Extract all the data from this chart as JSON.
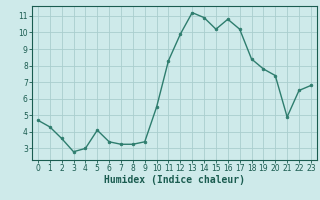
{
  "x": [
    0,
    1,
    2,
    3,
    4,
    5,
    6,
    7,
    8,
    9,
    10,
    11,
    12,
    13,
    14,
    15,
    16,
    17,
    18,
    19,
    20,
    21,
    22,
    23
  ],
  "y": [
    4.7,
    4.3,
    3.6,
    2.8,
    3.0,
    4.1,
    3.4,
    3.25,
    3.25,
    3.4,
    5.5,
    8.3,
    9.9,
    11.2,
    10.9,
    10.2,
    10.8,
    10.2,
    8.4,
    7.8,
    7.4,
    4.9,
    6.5,
    6.8
  ],
  "line_color": "#2e7d6e",
  "marker": "o",
  "marker_size": 2.0,
  "bg_color": "#ceeaea",
  "grid_color": "#aacece",
  "xlabel": "Humidex (Indice chaleur)",
  "xlim": [
    -0.5,
    23.5
  ],
  "ylim": [
    2.3,
    11.6
  ],
  "yticks": [
    3,
    4,
    5,
    6,
    7,
    8,
    9,
    10,
    11
  ],
  "xticks": [
    0,
    1,
    2,
    3,
    4,
    5,
    6,
    7,
    8,
    9,
    10,
    11,
    12,
    13,
    14,
    15,
    16,
    17,
    18,
    19,
    20,
    21,
    22,
    23
  ],
  "tick_label_fontsize": 5.5,
  "xlabel_fontsize": 7.0,
  "axis_color": "#1a5c50",
  "line_width": 1.0
}
